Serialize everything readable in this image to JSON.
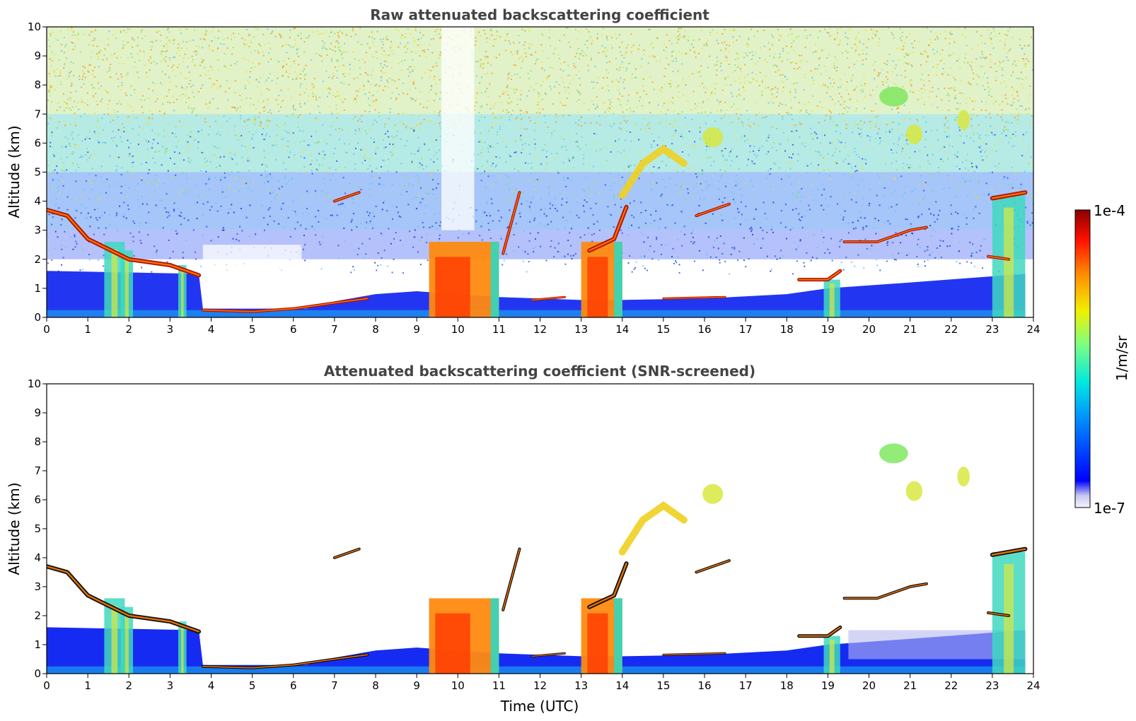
{
  "chart_data": [
    {
      "type": "heatmap",
      "title": "Raw attenuated backscattering coefficient",
      "xlabel": "",
      "ylabel": "Altitude (km)",
      "xlim": [
        0,
        24
      ],
      "ylim": [
        0,
        10
      ],
      "x_ticks": [
        "0",
        "1",
        "2",
        "3",
        "4",
        "5",
        "6",
        "7",
        "8",
        "9",
        "10",
        "11",
        "12",
        "13",
        "14",
        "15",
        "16",
        "17",
        "18",
        "19",
        "20",
        "21",
        "22",
        "23",
        "24"
      ],
      "y_ticks": [
        "0",
        "1",
        "2",
        "3",
        "4",
        "5",
        "6",
        "7",
        "8",
        "9",
        "10"
      ],
      "features": {
        "cloud_layer_km": [
          [
            0,
            3.7
          ],
          [
            0.5,
            3.5
          ],
          [
            1,
            2.7
          ],
          [
            2,
            2.0
          ],
          [
            3,
            1.8
          ],
          [
            3.7,
            1.45
          ]
        ],
        "boundary_layer_top_km": [
          [
            3.8,
            0.25
          ],
          [
            5,
            0.2
          ],
          [
            6,
            0.3
          ],
          [
            7,
            0.5
          ],
          [
            7.8,
            0.65
          ]
        ],
        "convective_plumes": [
          {
            "x": [
              9.3,
              11.0
            ],
            "top_km": 2.6,
            "core": "orange"
          },
          {
            "x": [
              13.0,
              14.0
            ],
            "top_km": 2.6,
            "core": "orange"
          }
        ],
        "upper_cloud_km": [
          [
            14,
            4.2
          ],
          [
            14.5,
            5.3
          ],
          [
            15,
            5.8
          ],
          [
            15.5,
            5.3
          ]
        ],
        "noise_level": "high"
      }
    },
    {
      "type": "heatmap",
      "title": "Attenuated backscattering coefficient (SNR-screened)",
      "xlabel": "Time (UTC)",
      "ylabel": "Altitude (km)",
      "xlim": [
        0,
        24
      ],
      "ylim": [
        0,
        10
      ],
      "x_ticks": [
        "0",
        "1",
        "2",
        "3",
        "4",
        "5",
        "6",
        "7",
        "8",
        "9",
        "10",
        "11",
        "12",
        "13",
        "14",
        "15",
        "16",
        "17",
        "18",
        "19",
        "20",
        "21",
        "22",
        "23",
        "24"
      ],
      "y_ticks": [
        "0",
        "1",
        "2",
        "3",
        "4",
        "5",
        "6",
        "7",
        "8",
        "9",
        "10"
      ],
      "features": {
        "screened": true,
        "noise_level": "none"
      }
    }
  ],
  "colorbar": {
    "label": "1/m/sr",
    "max_label": "1e-4",
    "min_label": "1e-7",
    "scale": "log",
    "colormap": "jet"
  }
}
